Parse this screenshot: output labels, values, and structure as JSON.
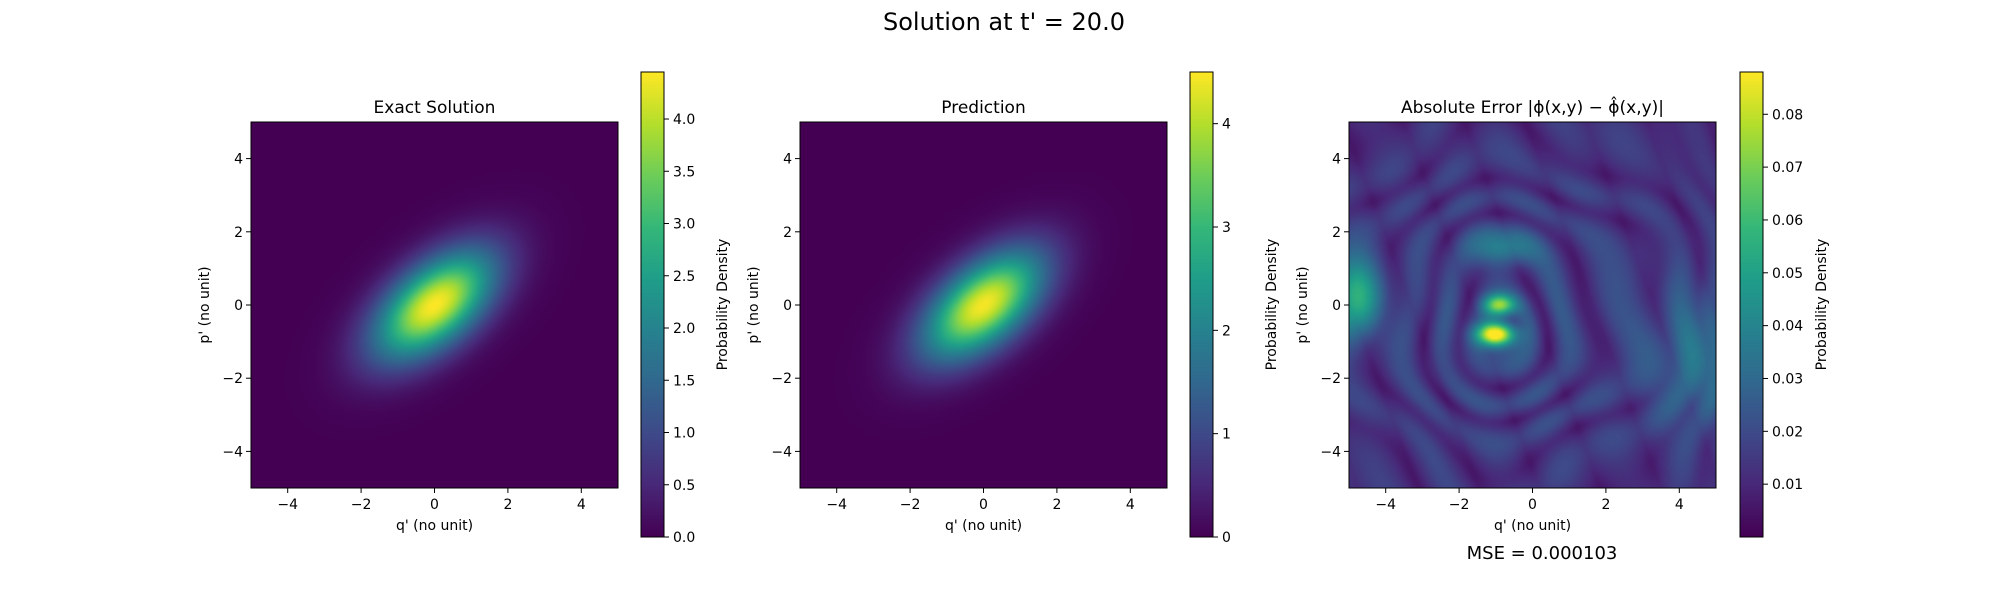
{
  "suptitle": "Solution at t' = 20.0",
  "colormap": "viridis",
  "footer_text": "MSE = 0.000103",
  "chart_data": [
    {
      "type": "heatmap",
      "title": "Exact Solution",
      "xlabel": "q' (no unit)",
      "ylabel": "p' (no unit)",
      "xlim": [
        -5,
        5
      ],
      "ylim": [
        -5,
        5
      ],
      "xticks": [
        -4,
        -2,
        0,
        2,
        4
      ],
      "yticks": [
        -4,
        -2,
        0,
        2,
        4
      ],
      "colorbar_label": "Probability Density",
      "colorbar_range": [
        0,
        4.45
      ],
      "colorbar_ticks": [
        "0.0",
        "0.5",
        "1.0",
        "1.5",
        "2.0",
        "2.5",
        "3.0",
        "3.5",
        "4.0"
      ],
      "field": {
        "kind": "gaussian",
        "peak": 4.45,
        "center": [
          0,
          0
        ],
        "angle_deg": 40,
        "sigma_major": 1.35,
        "sigma_minor": 0.72
      }
    },
    {
      "type": "heatmap",
      "title": "Prediction",
      "xlabel": "q' (no unit)",
      "ylabel": "p' (no unit)",
      "xlim": [
        -5,
        5
      ],
      "ylim": [
        -5,
        5
      ],
      "xticks": [
        -4,
        -2,
        0,
        2,
        4
      ],
      "yticks": [
        -4,
        -2,
        0,
        2,
        4
      ],
      "colorbar_label": "Probability Density",
      "colorbar_range": [
        0,
        4.5
      ],
      "colorbar_ticks": [
        "0",
        "1",
        "2",
        "3",
        "4"
      ],
      "field": {
        "kind": "gaussian",
        "peak": 4.45,
        "center": [
          0,
          0
        ],
        "angle_deg": 40,
        "sigma_major": 1.35,
        "sigma_minor": 0.72
      }
    },
    {
      "type": "heatmap",
      "title": "Absolute Error |ϕ(x,y) − ϕ̂(x,y)|",
      "xlabel": "q' (no unit)",
      "ylabel": "p' (no unit)",
      "xlim": [
        -5,
        5
      ],
      "ylim": [
        -5,
        5
      ],
      "xticks": [
        -4,
        -2,
        0,
        2,
        4
      ],
      "yticks": [
        -4,
        -2,
        0,
        2,
        4
      ],
      "colorbar_label": "Probability Density",
      "colorbar_range": [
        0.0,
        0.088
      ],
      "colorbar_ticks": [
        "0.01",
        "0.02",
        "0.03",
        "0.04",
        "0.05",
        "0.06",
        "0.07",
        "0.08"
      ],
      "field": {
        "kind": "error",
        "peak": 0.088,
        "hotspots": [
          [
            -1.0,
            -0.8
          ],
          [
            -0.9,
            0.0
          ]
        ],
        "side_lobes": [
          [
            -4.8,
            0.2
          ],
          [
            -0.8,
            1.5
          ]
        ]
      }
    }
  ]
}
